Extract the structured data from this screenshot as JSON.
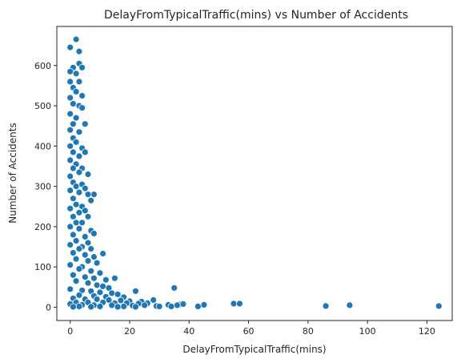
{
  "chart_data": {
    "type": "scatter",
    "title": "DelayFromTypicalTraffic(mins) vs Number of Accidents",
    "xlabel": "DelayFromTypicalTraffic(mins)",
    "ylabel": "Number of Accidents",
    "xlim": [
      -4.5,
      128.5
    ],
    "ylim": [
      -33,
      697
    ],
    "xticks": [
      0,
      20,
      40,
      60,
      80,
      100,
      120
    ],
    "yticks": [
      0,
      100,
      200,
      300,
      400,
      500,
      600
    ],
    "grid": false,
    "legend": "none",
    "marker_color": "#1f77b4",
    "points": [
      [
        0,
        645
      ],
      [
        2,
        665
      ],
      [
        3,
        635
      ],
      [
        3,
        605
      ],
      [
        1,
        595
      ],
      [
        4,
        595
      ],
      [
        2,
        580
      ],
      [
        0,
        585
      ],
      [
        0,
        560
      ],
      [
        3,
        560
      ],
      [
        1,
        545
      ],
      [
        2,
        535
      ],
      [
        4,
        525
      ],
      [
        0,
        520
      ],
      [
        1,
        505
      ],
      [
        3,
        500
      ],
      [
        4,
        495
      ],
      [
        0,
        480
      ],
      [
        2,
        470
      ],
      [
        1,
        455
      ],
      [
        5,
        455
      ],
      [
        0,
        440
      ],
      [
        3,
        435
      ],
      [
        1,
        420
      ],
      [
        2,
        410
      ],
      [
        0,
        400
      ],
      [
        4,
        395
      ],
      [
        1,
        385
      ],
      [
        3,
        375
      ],
      [
        5,
        385
      ],
      [
        0,
        365
      ],
      [
        2,
        355
      ],
      [
        1,
        345
      ],
      [
        4,
        345
      ],
      [
        3,
        335
      ],
      [
        0,
        325
      ],
      [
        6,
        330
      ],
      [
        1,
        310
      ],
      [
        2,
        300
      ],
      [
        4,
        305
      ],
      [
        5,
        295
      ],
      [
        0,
        290
      ],
      [
        3,
        285
      ],
      [
        8,
        280
      ],
      [
        6,
        280
      ],
      [
        7,
        265
      ],
      [
        1,
        270
      ],
      [
        2,
        255
      ],
      [
        4,
        250
      ],
      [
        0,
        245
      ],
      [
        3,
        235
      ],
      [
        5,
        240
      ],
      [
        1,
        225
      ],
      [
        6,
        225
      ],
      [
        2,
        210
      ],
      [
        4,
        210
      ],
      [
        0,
        200
      ],
      [
        3,
        195
      ],
      [
        7,
        190
      ],
      [
        8,
        183
      ],
      [
        1,
        180
      ],
      [
        5,
        175
      ],
      [
        2,
        165
      ],
      [
        6,
        160
      ],
      [
        0,
        155
      ],
      [
        4,
        150
      ],
      [
        3,
        145
      ],
      [
        7,
        145
      ],
      [
        1,
        135
      ],
      [
        11,
        133
      ],
      [
        5,
        130
      ],
      [
        8,
        125
      ],
      [
        2,
        120
      ],
      [
        6,
        115
      ],
      [
        9,
        110
      ],
      [
        0,
        105
      ],
      [
        4,
        100
      ],
      [
        3,
        95
      ],
      [
        7,
        90
      ],
      [
        10,
        85
      ],
      [
        1,
        80
      ],
      [
        5,
        75
      ],
      [
        8,
        72
      ],
      [
        15,
        72
      ],
      [
        12,
        68
      ],
      [
        2,
        65
      ],
      [
        6,
        60
      ],
      [
        9,
        55
      ],
      [
        11,
        52
      ],
      [
        13,
        48
      ],
      [
        35,
        48
      ],
      [
        0,
        45
      ],
      [
        4,
        42
      ],
      [
        7,
        40
      ],
      [
        22,
        40
      ],
      [
        10,
        37
      ],
      [
        14,
        35
      ],
      [
        16,
        32
      ],
      [
        3,
        30
      ],
      [
        8,
        28
      ],
      [
        12,
        26
      ],
      [
        18,
        25
      ],
      [
        1,
        22
      ],
      [
        5,
        20
      ],
      [
        9,
        20
      ],
      [
        13,
        18
      ],
      [
        17,
        17
      ],
      [
        20,
        15
      ],
      [
        24,
        14
      ],
      [
        28,
        18
      ],
      [
        2,
        12
      ],
      [
        6,
        12
      ],
      [
        11,
        12
      ],
      [
        15,
        10
      ],
      [
        19,
        10
      ],
      [
        23,
        9
      ],
      [
        26,
        10
      ],
      [
        33,
        6
      ],
      [
        37,
        7
      ],
      [
        0,
        8
      ],
      [
        4,
        6
      ],
      [
        8,
        5
      ],
      [
        14,
        5
      ],
      [
        21,
        4
      ],
      [
        25,
        5
      ],
      [
        29,
        3
      ],
      [
        36,
        5
      ],
      [
        38,
        8
      ],
      [
        45,
        6
      ],
      [
        55,
        9
      ],
      [
        57,
        9
      ],
      [
        3,
        2
      ],
      [
        10,
        2
      ],
      [
        18,
        2
      ],
      [
        30,
        2
      ],
      [
        34,
        2
      ],
      [
        43,
        2
      ],
      [
        86,
        3
      ],
      [
        94,
        5
      ],
      [
        124,
        3
      ],
      [
        7,
        1
      ],
      [
        16,
        1
      ],
      [
        22,
        1
      ],
      [
        1,
        1
      ]
    ]
  }
}
